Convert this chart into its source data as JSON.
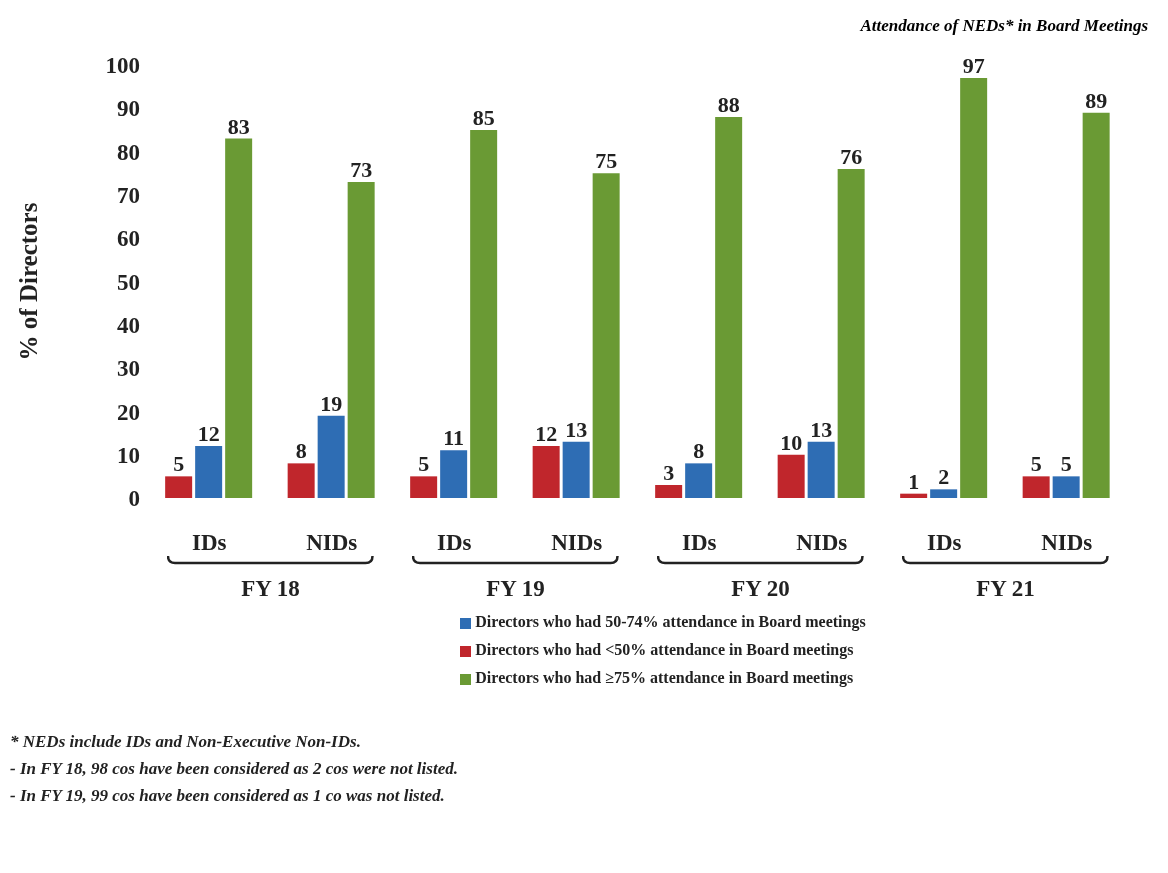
{
  "chart_data": {
    "type": "bar",
    "title": "Attendance of NEDs* in Board Meetings",
    "ylabel": "% of Directors",
    "categories": [
      "IDs",
      "NIDs",
      "IDs",
      "NIDs",
      "IDs",
      "NIDs",
      "IDs",
      "NIDs"
    ],
    "series": [
      {
        "name": "Directors who had <50% attendance in Board meetings",
        "color": "#c0262c",
        "values": [
          5,
          8,
          5,
          12,
          3,
          10,
          1,
          5
        ]
      },
      {
        "name": "Directors who had 50-74% attendance in Board meetings",
        "color": "#2e6db4",
        "values": [
          12,
          19,
          11,
          13,
          8,
          13,
          2,
          5
        ]
      },
      {
        "name": "Directors who had ≥75% attendance in Board meetings",
        "color": "#6a9a34",
        "values": [
          83,
          73,
          85,
          75,
          88,
          76,
          97,
          89
        ]
      }
    ],
    "ylim": [
      0,
      100
    ],
    "yticks": [
      0,
      10,
      20,
      30,
      40,
      50,
      60,
      70,
      80,
      90,
      100
    ],
    "grid": false,
    "legend": "bottom",
    "data_labels": true,
    "annotations": [
      "FY 18",
      "FY 19",
      "FY 20",
      "FY 21",
      "* NEDs include IDs and Non-Executive Non-IDs.",
      "- In FY 18, 98 cos have been considered as 2 cos were not listed.",
      "- In FY 19, 99 cos have been considered as 1 co was not listed."
    ]
  }
}
